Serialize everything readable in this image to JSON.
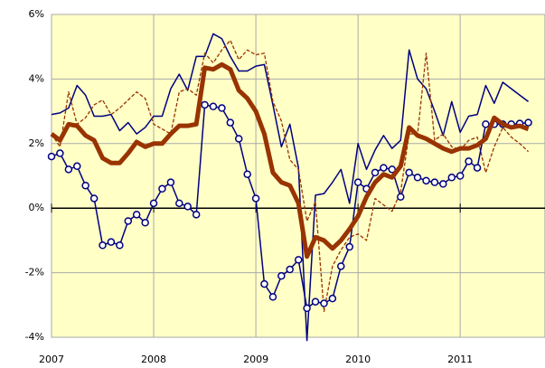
{
  "chart_data": {
    "type": "line",
    "x": [
      2007,
      2007.083,
      2007.167,
      2007.25,
      2007.333,
      2007.417,
      2007.5,
      2007.583,
      2007.667,
      2007.75,
      2007.833,
      2007.917,
      2008,
      2008.083,
      2008.167,
      2008.25,
      2008.333,
      2008.417,
      2008.5,
      2008.583,
      2008.667,
      2008.75,
      2008.833,
      2008.917,
      2009,
      2009.083,
      2009.167,
      2009.25,
      2009.333,
      2009.417,
      2009.5,
      2009.583,
      2009.667,
      2009.75,
      2009.833,
      2009.917,
      2010,
      2010.083,
      2010.167,
      2010.25,
      2010.333,
      2010.417,
      2010.5,
      2010.583,
      2010.667,
      2010.75,
      2010.833,
      2010.917,
      2011,
      2011.083,
      2011.167,
      2011.25,
      2011.333,
      2011.417,
      2011.5,
      2011.583,
      2011.667
    ],
    "series": [
      {
        "color": "#000080",
        "style": "thin",
        "values": [
          2.9,
          2.95,
          3.1,
          3.8,
          3.5,
          2.85,
          2.85,
          2.9,
          2.4,
          2.65,
          2.3,
          2.5,
          2.85,
          2.85,
          3.7,
          4.15,
          3.65,
          4.7,
          4.7,
          5.4,
          5.25,
          4.7,
          4.25,
          4.25,
          4.4,
          4.45,
          3.2,
          1.9,
          2.6,
          1.25,
          -4.1,
          0.4,
          0.45,
          0.8,
          1.2,
          0.15,
          2.0,
          1.2,
          1.8,
          2.25,
          1.85,
          2.1,
          4.9,
          4.0,
          3.7,
          3.0,
          2.25,
          3.3,
          2.35,
          2.85,
          2.9,
          3.8,
          3.25,
          3.9,
          3.7,
          3.5,
          3.3
        ]
      },
      {
        "color": "#993300",
        "style": "dashed",
        "values": [
          2.3,
          1.9,
          3.6,
          2.6,
          2.8,
          3.2,
          3.35,
          2.9,
          3.1,
          3.35,
          3.6,
          3.4,
          2.6,
          2.45,
          2.3,
          3.6,
          3.7,
          3.5,
          4.8,
          4.5,
          4.9,
          5.2,
          4.6,
          4.9,
          4.75,
          4.8,
          3.3,
          2.7,
          1.5,
          1.2,
          -0.4,
          0.2,
          -3.2,
          -1.8,
          -1.3,
          -0.9,
          -0.8,
          -1.0,
          0.3,
          0.1,
          -0.1,
          0.5,
          2.3,
          2.3,
          4.8,
          2.1,
          2.3,
          1.9,
          1.8,
          2.1,
          2.2,
          1.1,
          1.9,
          2.5,
          2.2,
          2.0,
          1.75
        ]
      },
      {
        "color": "#000080",
        "style": "markers",
        "values": [
          1.6,
          1.7,
          1.2,
          1.3,
          0.7,
          0.3,
          -1.15,
          -1.05,
          -1.15,
          -0.4,
          -0.2,
          -0.45,
          0.15,
          0.6,
          0.8,
          0.15,
          0.05,
          -0.2,
          3.2,
          3.15,
          3.1,
          2.65,
          2.15,
          1.05,
          0.3,
          -2.35,
          -2.75,
          -2.1,
          -1.9,
          -1.6,
          -3.1,
          -2.9,
          -2.95,
          -2.8,
          -1.8,
          -1.2,
          0.8,
          0.6,
          1.1,
          1.25,
          1.2,
          0.35,
          1.1,
          0.95,
          0.85,
          0.8,
          0.75,
          0.95,
          1.0,
          1.45,
          1.25,
          2.6,
          2.6,
          2.6,
          2.6,
          2.62,
          2.65
        ]
      },
      {
        "color": "#993300",
        "style": "thick",
        "values": [
          2.3,
          2.1,
          2.6,
          2.55,
          2.25,
          2.1,
          1.55,
          1.4,
          1.4,
          1.7,
          2.05,
          1.9,
          2.0,
          2.0,
          2.3,
          2.55,
          2.55,
          2.6,
          4.35,
          4.3,
          4.45,
          4.3,
          3.65,
          3.4,
          3.0,
          2.3,
          1.1,
          0.8,
          0.7,
          0.15,
          -1.5,
          -0.9,
          -1.0,
          -1.25,
          -1.0,
          -0.65,
          -0.25,
          0.35,
          0.8,
          1.05,
          0.95,
          1.3,
          2.5,
          2.25,
          2.15,
          2.0,
          1.85,
          1.75,
          1.85,
          1.85,
          1.95,
          2.15,
          2.8,
          2.6,
          2.5,
          2.55,
          2.45
        ]
      }
    ],
    "xlim": [
      2007,
      2011.83
    ],
    "xticks": [
      2007,
      2008,
      2009,
      2010,
      2011
    ],
    "ylim": [
      -4,
      6
    ],
    "yticks": [
      {
        "value": -4,
        "label": "-4%"
      },
      {
        "value": -2,
        "label": "-2%"
      },
      {
        "value": 0,
        "label": "0%"
      },
      {
        "value": 2,
        "label": "2%"
      },
      {
        "value": 4,
        "label": "4%"
      },
      {
        "value": 6,
        "label": "6%"
      }
    ],
    "grid": true,
    "background": "#ffffc6"
  }
}
